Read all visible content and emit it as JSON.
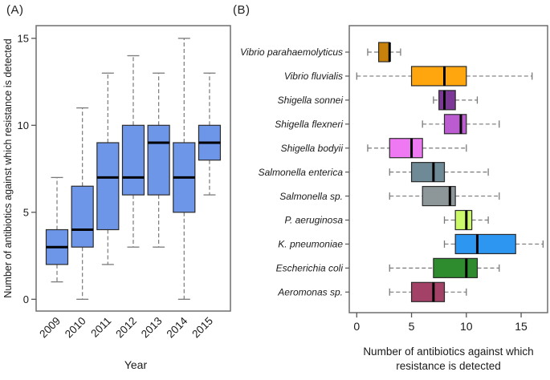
{
  "figure": {
    "background": "#ffffff",
    "text_color": "#1a1a1a",
    "frame_color": "#6e6e6e",
    "box_stroke_color": "#2b2b2b",
    "median_color": "#000000",
    "whisker_color": "#7a7a7a"
  },
  "chart_data": [
    {
      "type": "boxplot",
      "panel_label": "(A)",
      "orientation": "vertical",
      "xlabel": "Year",
      "ylabel": "Number of antibiotics against which resistance is detected",
      "ylim": [
        -0.7,
        15.8
      ],
      "yticks": [
        0,
        5,
        10,
        15
      ],
      "grid": false,
      "box_fill": "#6d95e8",
      "categories": [
        "2009",
        "2010",
        "2011",
        "2012",
        "2013",
        "2014",
        "2015"
      ],
      "boxes": [
        {
          "label": "2009",
          "min": 1,
          "q1": 2,
          "median": 3,
          "q3": 4,
          "max": 7
        },
        {
          "label": "2010",
          "min": 0,
          "q1": 3,
          "median": 4,
          "q3": 6.5,
          "max": 11
        },
        {
          "label": "2011",
          "min": 2,
          "q1": 4,
          "median": 7,
          "q3": 9,
          "max": 13
        },
        {
          "label": "2012",
          "min": 3,
          "q1": 6,
          "median": 7,
          "q3": 10,
          "max": 14
        },
        {
          "label": "2013",
          "min": 3,
          "q1": 6,
          "median": 9,
          "q3": 10,
          "max": 13
        },
        {
          "label": "2014",
          "min": 0,
          "q1": 5,
          "median": 7,
          "q3": 9,
          "max": 15
        },
        {
          "label": "2015",
          "min": 6,
          "q1": 8,
          "median": 9,
          "q3": 10,
          "max": 13
        }
      ]
    },
    {
      "type": "boxplot",
      "panel_label": "(B)",
      "orientation": "horizontal",
      "xlabel_lines": [
        "Number of antibiotics against which",
        "resistance is detected"
      ],
      "xlim": [
        -0.7,
        17.4
      ],
      "xticks": [
        0,
        5,
        10,
        15
      ],
      "grid": false,
      "boxes": [
        {
          "label": "Vibrio parahaemolyticus",
          "color": "#c8820b",
          "min": 1,
          "q1": 2,
          "median": 3,
          "q3": 3,
          "max": 4
        },
        {
          "label": "Vibrio fluvialis",
          "color": "#ffa60e",
          "min": 0,
          "q1": 5,
          "median": 8,
          "q3": 10,
          "max": 16
        },
        {
          "label": "Shigella sonnei",
          "color": "#7c3797",
          "min": 7,
          "q1": 7.5,
          "median": 8,
          "q3": 9,
          "max": 11
        },
        {
          "label": "Shigella flexneri",
          "color": "#bb5dd1",
          "min": 6,
          "q1": 8,
          "median": 9.5,
          "q3": 10,
          "max": 13
        },
        {
          "label": "Shigella bodyii",
          "color": "#ef79f2",
          "min": 1,
          "q1": 3,
          "median": 5,
          "q3": 6,
          "max": 10
        },
        {
          "label": "Salmonella enterica",
          "color": "#6d8a96",
          "min": 3,
          "q1": 5,
          "median": 7,
          "q3": 8,
          "max": 12
        },
        {
          "label": "Salmonella sp.",
          "color": "#8d9799",
          "min": 3,
          "q1": 6,
          "median": 8.5,
          "q3": 9,
          "max": 13
        },
        {
          "label": "P. aeruginosa",
          "color": "#ccf96a",
          "min": 8,
          "q1": 9,
          "median": 10,
          "q3": 10.5,
          "max": 12
        },
        {
          "label": "K. pneumoniae",
          "color": "#2d96f0",
          "min": 8,
          "q1": 9,
          "median": 11,
          "q3": 14.5,
          "max": 17
        },
        {
          "label": "Escherichia coli",
          "color": "#2e8b2e",
          "min": 3,
          "q1": 7,
          "median": 10,
          "q3": 11,
          "max": 13
        },
        {
          "label": "Aeromonas sp.",
          "color": "#a34166",
          "min": 3,
          "q1": 5,
          "median": 7,
          "q3": 8,
          "max": 10
        }
      ]
    }
  ]
}
